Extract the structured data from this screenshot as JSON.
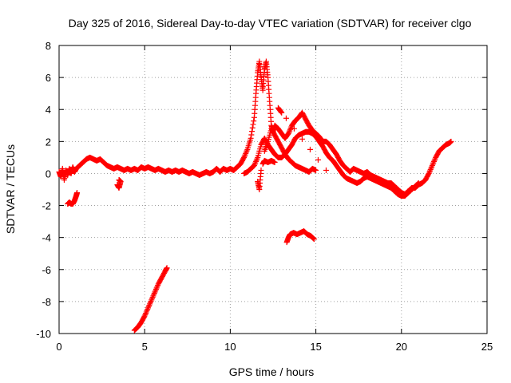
{
  "chart_data": {
    "type": "scatter",
    "title": "Day 325 of 2016, Sidereal Day-to-day VTEC variation (SDTVAR) for receiver clgo",
    "xlabel": "GPS time / hours",
    "ylabel": "SDTVAR / TECUs",
    "xlim": [
      0,
      25
    ],
    "ylim": [
      -10,
      8
    ],
    "xticks": [
      0,
      5,
      10,
      15,
      20,
      25
    ],
    "yticks": [
      -10,
      -8,
      -6,
      -4,
      -2,
      0,
      2,
      4,
      6,
      8
    ],
    "xtick_labels": [
      "0",
      "5",
      "10",
      "15",
      "20",
      "25"
    ],
    "ytick_labels": [
      "-10",
      "-8",
      "-6",
      "-4",
      "-2",
      "0",
      "2",
      "4",
      "6",
      "8"
    ],
    "grid": true,
    "marker": "+",
    "series": [
      {
        "name": "clgo",
        "color": "#ff0000",
        "segments": [
          [
            [
              0.0,
              0.1
            ],
            [
              0.1,
              -0.2
            ],
            [
              0.2,
              0.3
            ],
            [
              0.3,
              -0.4
            ],
            [
              0.4,
              0.2
            ],
            [
              0.5,
              -0.1
            ],
            [
              0.6,
              0.3
            ],
            [
              0.7,
              0.0
            ],
            [
              0.8,
              0.4
            ],
            [
              0.9,
              0.1
            ],
            [
              1.0,
              0.3
            ],
            [
              1.2,
              0.5
            ],
            [
              1.4,
              0.7
            ],
            [
              1.6,
              0.9
            ],
            [
              1.8,
              1.0
            ],
            [
              2.0,
              0.9
            ],
            [
              2.2,
              0.8
            ],
            [
              2.4,
              0.9
            ],
            [
              2.6,
              0.7
            ],
            [
              2.8,
              0.5
            ],
            [
              3.0,
              0.4
            ],
            [
              3.2,
              0.3
            ],
            [
              3.4,
              0.4
            ],
            [
              3.6,
              0.3
            ],
            [
              3.8,
              0.2
            ],
            [
              4.0,
              0.3
            ],
            [
              4.2,
              0.2
            ],
            [
              4.4,
              0.3
            ],
            [
              4.6,
              0.2
            ],
            [
              4.8,
              0.4
            ],
            [
              5.0,
              0.3
            ],
            [
              5.2,
              0.4
            ],
            [
              5.4,
              0.3
            ],
            [
              5.6,
              0.2
            ],
            [
              5.8,
              0.3
            ],
            [
              6.0,
              0.2
            ],
            [
              6.2,
              0.1
            ],
            [
              6.4,
              0.2
            ],
            [
              6.6,
              0.1
            ],
            [
              6.8,
              0.2
            ],
            [
              7.0,
              0.1
            ],
            [
              7.2,
              0.2
            ],
            [
              7.4,
              0.1
            ],
            [
              7.6,
              0.0
            ],
            [
              7.8,
              0.1
            ],
            [
              8.0,
              0.0
            ],
            [
              8.2,
              -0.1
            ],
            [
              8.4,
              0.0
            ],
            [
              8.6,
              0.1
            ],
            [
              8.8,
              0.0
            ],
            [
              9.0,
              0.1
            ],
            [
              9.2,
              0.3
            ],
            [
              9.4,
              0.1
            ],
            [
              9.6,
              0.3
            ],
            [
              9.8,
              0.2
            ],
            [
              10.0,
              0.3
            ],
            [
              10.2,
              0.2
            ],
            [
              10.4,
              0.4
            ],
            [
              10.6,
              0.6
            ],
            [
              10.8,
              1.0
            ],
            [
              11.0,
              1.5
            ],
            [
              11.2,
              2.2
            ],
            [
              11.4,
              3.5
            ],
            [
              11.5,
              5.0
            ],
            [
              11.6,
              6.3
            ],
            [
              11.7,
              7.0
            ],
            [
              11.8,
              6.0
            ],
            [
              11.9,
              5.2
            ],
            [
              12.0,
              6.5
            ],
            [
              12.1,
              7.0
            ],
            [
              12.2,
              6.0
            ],
            [
              12.3,
              4.5
            ],
            [
              12.4,
              3.0
            ],
            [
              12.5,
              2.6
            ],
            [
              12.6,
              3.0
            ],
            [
              12.8,
              2.8
            ],
            [
              13.0,
              2.5
            ],
            [
              13.2,
              2.2
            ],
            [
              13.4,
              2.5
            ],
            [
              13.6,
              3.0
            ],
            [
              13.8,
              3.3
            ],
            [
              14.0,
              3.5
            ],
            [
              14.2,
              3.8
            ],
            [
              14.4,
              3.4
            ],
            [
              14.6,
              3.0
            ],
            [
              14.8,
              2.7
            ],
            [
              15.0,
              2.5
            ],
            [
              15.2,
              2.3
            ],
            [
              15.4,
              2.0
            ],
            [
              15.6,
              2.0
            ],
            [
              15.8,
              1.8
            ],
            [
              16.0,
              1.5
            ],
            [
              16.2,
              1.2
            ],
            [
              16.4,
              0.8
            ],
            [
              16.6,
              0.5
            ],
            [
              16.8,
              0.3
            ],
            [
              17.0,
              0.1
            ],
            [
              17.2,
              0.3
            ],
            [
              17.4,
              0.2
            ],
            [
              17.6,
              0.1
            ],
            [
              17.8,
              0.0
            ],
            [
              18.0,
              0.1
            ],
            [
              18.2,
              -0.1
            ],
            [
              18.4,
              -0.2
            ],
            [
              18.6,
              -0.3
            ],
            [
              18.8,
              -0.4
            ],
            [
              19.0,
              -0.5
            ],
            [
              19.2,
              -0.6
            ],
            [
              19.4,
              -0.6
            ],
            [
              19.6,
              -0.8
            ],
            [
              19.8,
              -1.0
            ],
            [
              20.0,
              -1.2
            ],
            [
              20.2,
              -1.3
            ],
            [
              20.4,
              -1.1
            ],
            [
              20.6,
              -0.9
            ],
            [
              20.8,
              -0.9
            ],
            [
              21.0,
              -0.7
            ],
            [
              21.2,
              -0.6
            ],
            [
              21.4,
              -0.4
            ],
            [
              21.6,
              0.0
            ],
            [
              21.8,
              0.5
            ],
            [
              22.0,
              1.0
            ],
            [
              22.2,
              1.4
            ],
            [
              22.4,
              1.6
            ],
            [
              22.6,
              1.8
            ],
            [
              22.8,
              1.9
            ],
            [
              22.9,
              2.0
            ]
          ],
          [
            [
              10.8,
              0.0
            ],
            [
              11.0,
              0.1
            ],
            [
              11.2,
              0.3
            ],
            [
              11.4,
              0.5
            ],
            [
              11.6,
              1.0
            ],
            [
              11.8,
              1.8
            ],
            [
              12.0,
              2.2
            ],
            [
              12.2,
              1.8
            ],
            [
              12.4,
              1.5
            ],
            [
              12.6,
              1.2
            ],
            [
              12.8,
              1.0
            ],
            [
              13.0,
              1.0
            ],
            [
              13.2,
              1.2
            ],
            [
              13.4,
              1.5
            ],
            [
              13.6,
              1.8
            ],
            [
              13.8,
              2.2
            ],
            [
              14.0,
              2.4
            ],
            [
              14.2,
              2.5
            ],
            [
              14.4,
              2.6
            ],
            [
              14.6,
              2.6
            ],
            [
              14.8,
              2.5
            ],
            [
              15.0,
              2.3
            ],
            [
              15.2,
              2.0
            ],
            [
              15.4,
              1.7
            ],
            [
              15.6,
              1.3
            ],
            [
              15.8,
              1.0
            ],
            [
              16.0,
              0.8
            ],
            [
              16.2,
              0.5
            ],
            [
              16.4,
              0.2
            ],
            [
              16.6,
              -0.1
            ],
            [
              16.8,
              -0.3
            ],
            [
              17.0,
              -0.4
            ],
            [
              17.2,
              -0.5
            ],
            [
              17.4,
              -0.6
            ],
            [
              17.6,
              -0.5
            ],
            [
              17.8,
              -0.3
            ],
            [
              18.0,
              -0.2
            ],
            [
              18.2,
              -0.3
            ],
            [
              18.4,
              -0.4
            ],
            [
              18.6,
              -0.5
            ],
            [
              18.8,
              -0.6
            ],
            [
              19.0,
              -0.7
            ],
            [
              19.2,
              -0.8
            ],
            [
              19.4,
              -0.9
            ],
            [
              19.6,
              -1.1
            ],
            [
              19.8,
              -1.3
            ],
            [
              20.0,
              -1.4
            ],
            [
              20.2,
              -1.4
            ],
            [
              20.4,
              -1.2
            ],
            [
              20.6,
              -1.0
            ],
            [
              20.8,
              -0.8
            ],
            [
              21.0,
              -0.6
            ]
          ],
          [
            [
              12.0,
              1.4
            ],
            [
              12.2,
              2.0
            ],
            [
              12.4,
              2.8
            ],
            [
              12.6,
              2.4
            ],
            [
              12.8,
              2.0
            ],
            [
              13.0,
              1.6
            ],
            [
              13.2,
              1.2
            ],
            [
              13.4,
              0.9
            ],
            [
              13.6,
              0.7
            ],
            [
              13.8,
              0.5
            ],
            [
              14.0,
              0.4
            ],
            [
              14.2,
              0.3
            ],
            [
              14.4,
              0.2
            ],
            [
              14.6,
              0.1
            ],
            [
              14.8,
              0.3
            ],
            [
              15.0,
              0.2
            ]
          ],
          [
            [
              11.9,
              0.6
            ],
            [
              12.0,
              0.8
            ],
            [
              12.2,
              0.7
            ],
            [
              12.4,
              0.8
            ],
            [
              12.6,
              0.7
            ]
          ],
          [
            [
              11.6,
              -0.5
            ],
            [
              11.7,
              -1.0
            ],
            [
              11.8,
              0.2
            ]
          ],
          [
            [
              0.5,
              -1.9
            ],
            [
              0.6,
              -1.8
            ],
            [
              0.7,
              -1.9
            ],
            [
              0.8,
              -1.9
            ],
            [
              0.9,
              -1.7
            ],
            [
              1.0,
              -1.4
            ],
            [
              1.05,
              -1.2
            ]
          ],
          [
            [
              13.3,
              -4.3
            ],
            [
              13.4,
              -4.0
            ],
            [
              13.5,
              -3.8
            ],
            [
              13.7,
              -3.7
            ],
            [
              13.9,
              -3.8
            ],
            [
              14.1,
              -3.7
            ],
            [
              14.3,
              -3.6
            ],
            [
              14.5,
              -3.8
            ],
            [
              14.7,
              -3.9
            ],
            [
              14.9,
              -4.1
            ]
          ],
          [
            [
              4.4,
              -9.8
            ],
            [
              4.6,
              -9.6
            ],
            [
              4.8,
              -9.3
            ],
            [
              5.0,
              -8.9
            ],
            [
              5.2,
              -8.4
            ],
            [
              5.4,
              -7.9
            ],
            [
              5.6,
              -7.4
            ],
            [
              5.8,
              -6.9
            ],
            [
              6.0,
              -6.5
            ],
            [
              6.2,
              -6.1
            ],
            [
              6.3,
              -5.9
            ]
          ],
          [
            [
              3.4,
              -0.7
            ],
            [
              3.5,
              -0.9
            ],
            [
              3.6,
              -0.5
            ],
            [
              3.5,
              -0.4
            ]
          ],
          [
            [
              15.6,
              0.2
            ],
            [
              12.8,
              4.1
            ],
            [
              13.0,
              3.8
            ]
          ]
        ]
      }
    ]
  }
}
